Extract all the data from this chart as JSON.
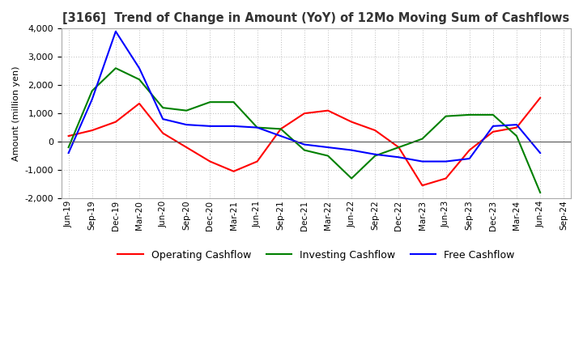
{
  "title": "[3166]  Trend of Change in Amount (YoY) of 12Mo Moving Sum of Cashflows",
  "ylabel": "Amount (million yen)",
  "ylim": [
    -2000,
    4000
  ],
  "yticks": [
    -2000,
    -1000,
    0,
    1000,
    2000,
    3000,
    4000
  ],
  "x_labels": [
    "Jun-19",
    "Sep-19",
    "Dec-19",
    "Mar-20",
    "Jun-20",
    "Sep-20",
    "Dec-20",
    "Mar-21",
    "Jun-21",
    "Sep-21",
    "Dec-21",
    "Mar-22",
    "Jun-22",
    "Sep-22",
    "Dec-22",
    "Mar-23",
    "Jun-23",
    "Sep-23",
    "Dec-23",
    "Mar-24",
    "Jun-24",
    "Sep-24"
  ],
  "operating": [
    200,
    400,
    700,
    1350,
    300,
    -200,
    -700,
    -1050,
    -700,
    450,
    1000,
    1100,
    700,
    400,
    -200,
    -1550,
    -1300,
    -300,
    350,
    500,
    1550,
    null
  ],
  "investing": [
    -200,
    1800,
    2600,
    2200,
    1200,
    1100,
    1400,
    1400,
    500,
    450,
    -300,
    -500,
    -1300,
    -500,
    -200,
    100,
    900,
    950,
    950,
    200,
    -1800,
    null
  ],
  "free": [
    -400,
    1500,
    3900,
    2600,
    800,
    600,
    550,
    550,
    500,
    200,
    -100,
    -200,
    -300,
    -450,
    -550,
    -700,
    -700,
    -600,
    550,
    600,
    -400,
    null
  ],
  "colors": {
    "operating": "#ff0000",
    "investing": "#008000",
    "free": "#0000ff"
  },
  "legend_labels": [
    "Operating Cashflow",
    "Investing Cashflow",
    "Free Cashflow"
  ],
  "background_color": "#ffffff",
  "grid_color": "#bbbbbb"
}
